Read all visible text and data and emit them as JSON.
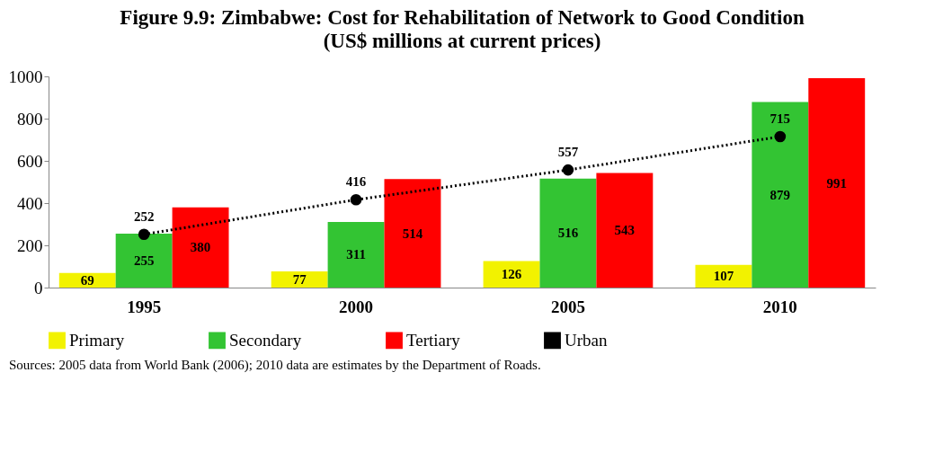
{
  "chart_data": {
    "type": "bar",
    "title": "Figure 9.9: Zimbabwe:  Cost for Rehabilitation of Network to Good Condition",
    "subtitle": "(US$ millions at current prices)",
    "categories": [
      "1995",
      "2000",
      "2005",
      "2010"
    ],
    "series": [
      {
        "name": "Primary",
        "color": "#f2f200",
        "values": [
          69,
          77,
          126,
          107
        ]
      },
      {
        "name": "Secondary",
        "color": "#33c433",
        "values": [
          255,
          311,
          516,
          879
        ]
      },
      {
        "name": "Tertiary",
        "color": "#ff0000",
        "values": [
          380,
          514,
          543,
          991
        ]
      },
      {
        "name": "Urban",
        "type": "line",
        "color": "#000000",
        "values": [
          252,
          416,
          557,
          715
        ],
        "marker": "circle",
        "line_style": "dotted"
      }
    ],
    "ylim": [
      0,
      1000
    ],
    "yticks": [
      0,
      200,
      400,
      600,
      800,
      1000
    ],
    "grid": false,
    "legend": "bottom",
    "data_labels": true,
    "annotations": [
      "Sources: 2005 data from World Bank (2006); 2010 data are estimates by the Department of Roads."
    ]
  }
}
